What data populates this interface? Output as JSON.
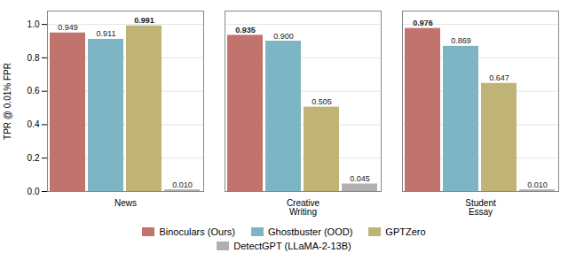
{
  "chart_data": {
    "type": "bar",
    "categories": [
      "News",
      "Creative\nWriting",
      "Student\nEssay"
    ],
    "series": [
      {
        "name": "Binoculars (Ours)",
        "color": "#c1736e",
        "values": [
          0.949,
          0.935,
          0.976
        ],
        "value_labels": [
          "0.949",
          "0.935",
          "0.976"
        ]
      },
      {
        "name": "Ghostbuster (OOD)",
        "color": "#7eb5c4",
        "values": [
          0.911,
          0.9,
          0.869
        ],
        "value_labels": [
          "0.911",
          "0.900",
          "0.869"
        ]
      },
      {
        "name": "GPTZero",
        "color": "#bfb476",
        "values": [
          0.991,
          0.505,
          0.647
        ],
        "value_labels": [
          "0.991",
          "0.505",
          "0.647"
        ]
      },
      {
        "name": "DetectGPT (LLaMA-2-13B)",
        "color": "#b0b0b0",
        "values": [
          0.01,
          0.045,
          0.01
        ],
        "value_labels": [
          "0.010",
          "0.045",
          "0.010"
        ]
      }
    ],
    "ylabel": "TPR @ 0.01% FPR",
    "ylim": [
      0.0,
      1.08
    ],
    "yticks": [
      {
        "value": 0,
        "label": "0.0"
      },
      0.2,
      0.4,
      0.6,
      0.8,
      {
        "value": 1,
        "label": "1.0"
      }
    ],
    "grid": true,
    "data_labels": true,
    "legend": "bottom"
  }
}
